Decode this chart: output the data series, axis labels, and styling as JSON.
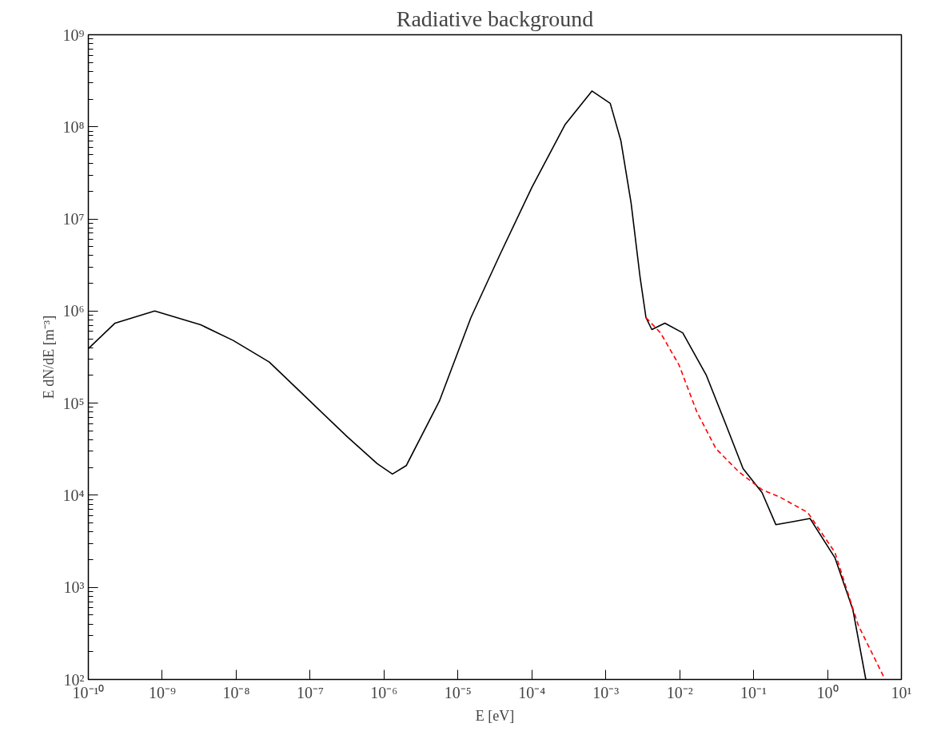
{
  "chart_data": {
    "type": "line",
    "title": "Radiative background",
    "xlabel": "E [eV]",
    "ylabel": "E dN/dE [m⁻³]",
    "log": "xy",
    "grid": false,
    "marker": "none",
    "xlim": [
      1e-10,
      10
    ],
    "ylim": [
      100,
      1000000000.0
    ],
    "xticks": [
      {
        "value": 1e-10,
        "label": "10⁻¹⁰"
      },
      {
        "value": 1e-09,
        "label": "10⁻⁹"
      },
      {
        "value": 1e-08,
        "label": "10⁻⁸"
      },
      {
        "value": 1e-07,
        "label": "10⁻⁷"
      },
      {
        "value": 1e-06,
        "label": "10⁻⁶"
      },
      {
        "value": 1e-05,
        "label": "10⁻⁵"
      },
      {
        "value": 0.0001,
        "label": "10⁻⁴"
      },
      {
        "value": 0.001,
        "label": "10⁻³"
      },
      {
        "value": 0.01,
        "label": "10⁻²"
      },
      {
        "value": 0.1,
        "label": "10⁻¹"
      },
      {
        "value": 1,
        "label": "10⁰"
      },
      {
        "value": 10,
        "label": "10¹"
      }
    ],
    "yticks": [
      {
        "value": 100,
        "label": "10²"
      },
      {
        "value": 1000,
        "label": "10³"
      },
      {
        "value": 10000,
        "label": "10⁴"
      },
      {
        "value": 100000,
        "label": "10⁵"
      },
      {
        "value": 1000000,
        "label": "10⁶"
      },
      {
        "value": 10000000,
        "label": "10⁷"
      },
      {
        "value": 100000000,
        "label": "10⁸"
      },
      {
        "value": 1000000000,
        "label": "10⁹"
      }
    ],
    "series": [
      {
        "color": "#000000",
        "line_style": "solid",
        "x": [
          1e-10,
          2.3e-10,
          7.9e-10,
          3.3e-09,
          9.1e-09,
          2.8e-08,
          1e-07,
          3.2e-07,
          8.1e-07,
          1.3e-06,
          2e-06,
          5.6e-06,
          1.5e-05,
          3.7e-05,
          0.0001,
          0.00028,
          0.00065,
          0.00115,
          0.0016,
          0.0022,
          0.0029,
          0.0035,
          0.0042,
          0.0063,
          0.011,
          0.023,
          0.041,
          0.072,
          0.13,
          0.2,
          0.35,
          0.58,
          1.26,
          2.2,
          3.3
        ],
        "values": [
          390000,
          740000,
          1000000,
          710000,
          480000,
          280000,
          105000,
          43000,
          22000,
          17000,
          21000,
          105000,
          850000,
          4100000,
          22000000,
          105000000,
          245000000,
          180000000,
          71000000,
          15000000,
          2400000,
          850000,
          630000,
          740000,
          580000,
          200000,
          62000,
          19500,
          10700,
          4800,
          5200,
          5600,
          2100,
          575,
          100
        ]
      },
      {
        "color": "#ff0000",
        "line_style": "dashed",
        "x": [
          0.0035,
          0.0055,
          0.0098,
          0.017,
          0.031,
          0.063,
          0.13,
          0.23,
          0.54,
          1.26,
          2.6,
          6.0
        ],
        "values": [
          850000,
          580000,
          260000,
          81000,
          32000,
          18000,
          11500,
          9500,
          6500,
          2400,
          390,
          100
        ]
      }
    ]
  }
}
